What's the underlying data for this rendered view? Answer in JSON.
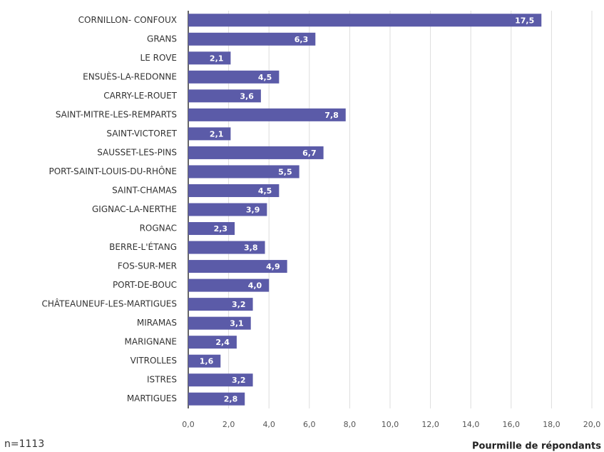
{
  "chart_data": {
    "type": "bar",
    "orientation": "horizontal",
    "categories": [
      "CORNILLON- CONFOUX",
      "GRANS",
      "LE ROVE",
      "ENSUÈS-LA-REDONNE",
      "CARRY-LE-ROUET",
      "SAINT-MITRE-LES-REMPARTS",
      "SAINT-VICTORET",
      "SAUSSET-LES-PINS",
      "PORT-SAINT-LOUIS-DU-RHÔNE",
      "SAINT-CHAMAS",
      "GIGNAC-LA-NERTHE",
      "ROGNAC",
      "BERRE-L'ÉTANG",
      "FOS-SUR-MER",
      "PORT-DE-BOUC",
      "CHÂTEAUNEUF-LES-MARTIGUES",
      "MIRAMAS",
      "MARIGNANE",
      "VITROLLES",
      "ISTRES",
      "MARTIGUES"
    ],
    "values": [
      17.5,
      6.3,
      2.1,
      4.5,
      3.6,
      7.8,
      2.1,
      6.7,
      5.5,
      4.5,
      3.9,
      2.3,
      3.8,
      4.9,
      4.0,
      3.2,
      3.1,
      2.4,
      1.6,
      3.2,
      2.8
    ],
    "value_labels": [
      "17,5",
      "6,3",
      "2,1",
      "4,5",
      "3,6",
      "7,8",
      "2,1",
      "6,7",
      "5,5",
      "4,5",
      "3,9",
      "2,3",
      "3,8",
      "4,9",
      "4,0",
      "3,2",
      "3,1",
      "2,4",
      "1,6",
      "3,2",
      "2,8"
    ],
    "color": "#5b5ba8",
    "xlim": [
      0,
      20
    ],
    "xticks": [
      {
        "value": 0,
        "label": "0,0"
      },
      {
        "value": 2,
        "label": "2,0"
      },
      {
        "value": 4,
        "label": "4,0"
      },
      {
        "value": 6,
        "label": "6,0"
      },
      {
        "value": 8,
        "label": "8,0"
      },
      {
        "value": 10,
        "label": "10,0"
      },
      {
        "value": 12,
        "label": "12,0"
      },
      {
        "value": 14,
        "label": "14,0"
      },
      {
        "value": 16,
        "label": "16,0"
      },
      {
        "value": 18,
        "label": "18,0"
      },
      {
        "value": 20,
        "label": "20,0"
      }
    ],
    "grid": true,
    "xlabel": "Pourmille de répondants",
    "note": "n=1113"
  }
}
